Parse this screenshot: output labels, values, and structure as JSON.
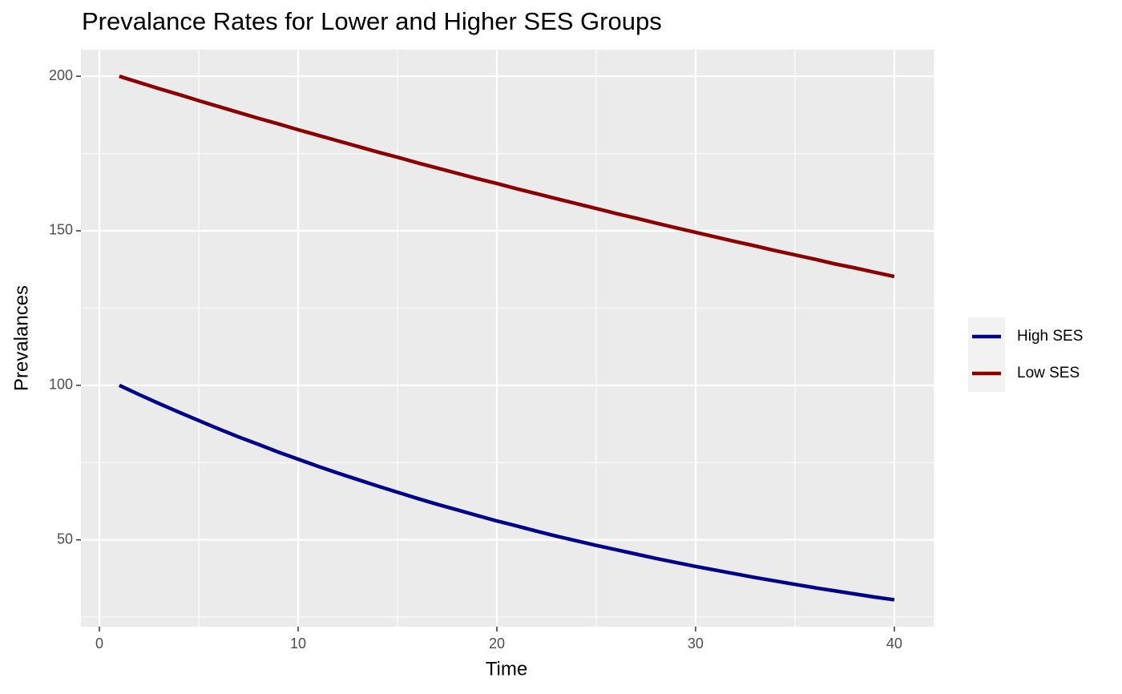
{
  "chart_data": {
    "type": "line",
    "title": "Prevalance Rates for Lower and Higher SES Groups",
    "x_label": "Time",
    "y_label": "Prevalances",
    "x": [
      1,
      2,
      3,
      4,
      5,
      6,
      7,
      8,
      9,
      10,
      11,
      12,
      13,
      14,
      15,
      16,
      17,
      18,
      19,
      20,
      21,
      22,
      23,
      24,
      25,
      26,
      27,
      28,
      29,
      30,
      31,
      32,
      33,
      34,
      35,
      36,
      37,
      38,
      39,
      40
    ],
    "series": [
      {
        "name": "High SES",
        "color": "#00008b",
        "values": [
          100,
          97.0,
          94.1,
          91.3,
          88.6,
          85.9,
          83.3,
          80.9,
          78.4,
          76.1,
          73.8,
          71.6,
          69.5,
          67.4,
          65.4,
          63.4,
          61.5,
          59.7,
          57.9,
          56.1,
          54.5,
          52.8,
          51.2,
          49.7,
          48.2,
          46.8,
          45.4,
          44.0,
          42.7,
          41.4,
          40.2,
          39.0,
          37.8,
          36.7,
          35.6,
          34.5,
          33.5,
          32.5,
          31.5,
          30.6
        ]
      },
      {
        "name": "Low SES",
        "color": "#8b0000",
        "values": [
          200,
          198.0,
          196.0,
          194.1,
          192.1,
          190.2,
          188.3,
          186.4,
          184.6,
          182.7,
          180.9,
          179.1,
          177.3,
          175.5,
          173.8,
          172.0,
          170.3,
          168.6,
          166.9,
          165.3,
          163.6,
          162.0,
          160.4,
          158.8,
          157.2,
          155.6,
          154.1,
          152.5,
          151.0,
          149.5,
          148.0,
          146.5,
          145.1,
          143.6,
          142.2,
          140.8,
          139.3,
          138.0,
          136.6,
          135.2
        ]
      }
    ],
    "xlim": [
      -0.93,
      41.98
    ],
    "ylim": [
      21.9,
      208.6
    ],
    "xticks": [
      0,
      10,
      20,
      30,
      40
    ],
    "yticks": [
      50,
      100,
      150,
      200
    ],
    "x_minor_ticks": [
      5,
      15,
      25,
      35
    ],
    "y_minor_ticks": [
      25,
      75,
      125,
      175
    ],
    "grid": true,
    "legend_position": "right"
  }
}
